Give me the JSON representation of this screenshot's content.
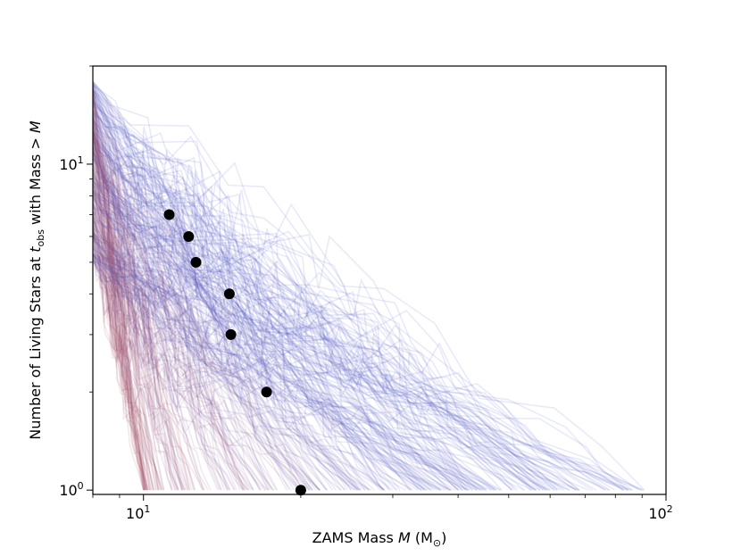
{
  "chart_data": {
    "type": "line",
    "xscale": "log",
    "yscale": "log",
    "xlim": [
      8,
      100
    ],
    "ylim": [
      0.97,
      20
    ],
    "xlabel": "ZAMS Mass $M$ (M$_\\odot$)",
    "ylabel": "Number of Living Stars at $t_{\\rm obs}$ with Mass $>M$",
    "xlabel_parts": {
      "prefix": "ZAMS Mass ",
      "var": "M",
      "unit_open": " (M",
      "sub": "⊙",
      "unit_close": ")"
    },
    "ylabel_parts": {
      "prefix": "Number of Living Stars at ",
      "var": "t",
      "sub": "obs",
      "suffix": " with Mass ",
      "tail": "> M"
    },
    "x_ticks_major": [
      {
        "value": 10,
        "base": "10",
        "exp": "1"
      },
      {
        "value": 100,
        "base": "10",
        "exp": "2"
      }
    ],
    "x_ticks_minor": [
      8,
      9,
      20,
      30,
      40,
      50,
      60,
      70,
      80,
      90
    ],
    "y_ticks_major": [
      {
        "value": 1,
        "base": "10",
        "exp": "0"
      },
      {
        "value": 10,
        "base": "10",
        "exp": "1"
      }
    ],
    "y_ticks_minor": [
      2,
      3,
      4,
      5,
      6,
      7,
      8,
      9,
      20
    ],
    "grid": false,
    "series": [
      {
        "kind": "scatter",
        "color": "#000000",
        "x": [
          11.2,
          12.2,
          12.6,
          14.6,
          14.7,
          17.2,
          20.0
        ],
        "y": [
          7,
          6,
          5,
          4,
          3,
          2,
          1
        ]
      }
    ],
    "background_curves": {
      "count": 320,
      "colors_from_to": [
        "#4b55c8",
        "#a5485a"
      ],
      "opacity": 0.12,
      "y_start_range": [
        5,
        18
      ],
      "x_end_range": [
        9,
        100
      ]
    }
  }
}
